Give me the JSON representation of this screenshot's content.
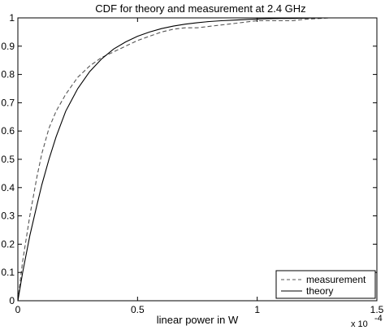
{
  "chart_data": {
    "type": "line",
    "title": "CDF for theory and measurement at 2.4 GHz",
    "xlabel": "linear power in W",
    "ylabel": "",
    "x_multiplier_base": "x 10",
    "x_multiplier_exp": "-4",
    "xlim": [
      0,
      1.5
    ],
    "ylim": [
      0,
      1
    ],
    "xticks": [
      "0",
      "0.5",
      "1",
      "1.5"
    ],
    "yticks": [
      "0",
      "0.1",
      "0.2",
      "0.3",
      "0.4",
      "0.5",
      "0.6",
      "0.7",
      "0.8",
      "0.9",
      "1"
    ],
    "grid": false,
    "legend_position": "bottom-right",
    "series": [
      {
        "name": "measurement",
        "style": "dashed",
        "color": "#555555",
        "x": [
          0,
          0.02,
          0.05,
          0.08,
          0.1,
          0.13,
          0.16,
          0.2,
          0.25,
          0.3,
          0.35,
          0.4,
          0.45,
          0.5,
          0.55,
          0.6,
          0.65,
          0.7,
          0.75,
          0.8,
          0.85,
          0.9,
          0.95,
          1.0,
          1.05,
          1.1,
          1.15,
          1.2,
          1.3,
          1.4
        ],
        "y": [
          0,
          0.14,
          0.3,
          0.44,
          0.52,
          0.61,
          0.67,
          0.73,
          0.79,
          0.83,
          0.86,
          0.88,
          0.9,
          0.92,
          0.935,
          0.95,
          0.96,
          0.965,
          0.965,
          0.97,
          0.975,
          0.98,
          0.985,
          0.99,
          0.99,
          0.99,
          0.99,
          0.995,
          1.0,
          1.0
        ]
      },
      {
        "name": "theory",
        "style": "solid",
        "color": "#000000",
        "x": [
          0,
          0.02,
          0.05,
          0.08,
          0.1,
          0.13,
          0.16,
          0.2,
          0.25,
          0.3,
          0.35,
          0.4,
          0.45,
          0.5,
          0.55,
          0.6,
          0.65,
          0.7,
          0.75,
          0.8,
          0.85,
          0.9,
          0.95,
          1.0,
          1.05,
          1.1,
          1.15,
          1.2,
          1.3,
          1.4
        ],
        "y": [
          0,
          0.1,
          0.23,
          0.34,
          0.41,
          0.5,
          0.58,
          0.67,
          0.75,
          0.81,
          0.855,
          0.89,
          0.915,
          0.935,
          0.95,
          0.962,
          0.971,
          0.978,
          0.983,
          0.987,
          0.99,
          0.992,
          0.994,
          0.996,
          0.997,
          0.998,
          0.998,
          0.999,
          1.0,
          1.0
        ]
      }
    ]
  }
}
